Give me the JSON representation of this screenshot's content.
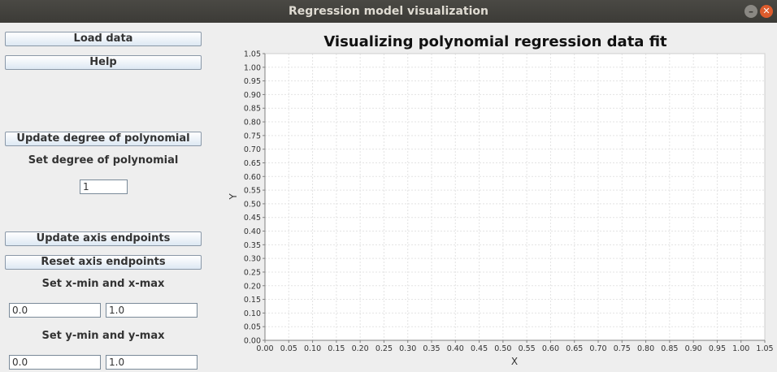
{
  "window": {
    "title": "Regression model visualization"
  },
  "sidebar": {
    "load_data_label": "Load data",
    "help_label": "Help",
    "update_degree_label": "Update degree of polynomial",
    "set_degree_label": "Set degree of polynomial",
    "degree_value": "1",
    "update_axis_label": "Update axis endpoints",
    "reset_axis_label": "Reset axis endpoints",
    "set_x_label": "Set x-min and x-max",
    "xmin_value": "0.0",
    "xmax_value": "1.0",
    "set_y_label": "Set y-min and y-max",
    "ymin_value": "0.0",
    "ymax_value": "1.0"
  },
  "chart_data": {
    "type": "scatter",
    "title": "Visualizing polynomial regression data fit",
    "xlabel": "X",
    "ylabel": "Y",
    "xlim": [
      0,
      1.05
    ],
    "ylim": [
      0,
      1.05
    ],
    "tick_step": 0.05,
    "grid": true,
    "series": []
  }
}
